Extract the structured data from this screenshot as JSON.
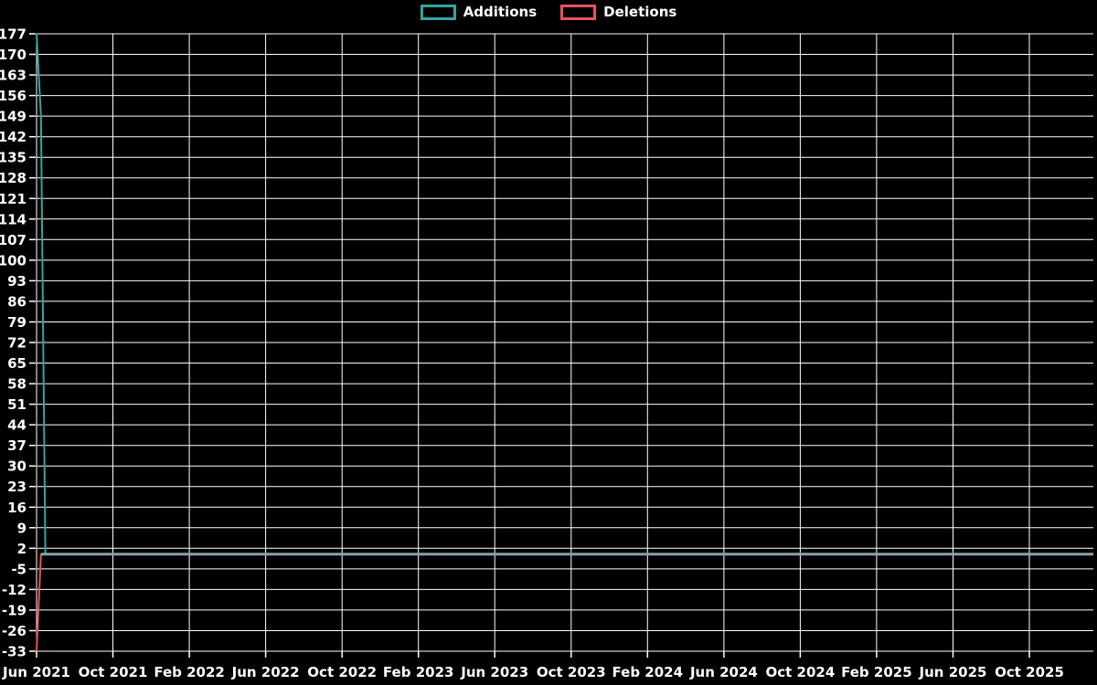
{
  "legend": {
    "items": [
      {
        "label": "Additions",
        "color": "#33a5a1"
      },
      {
        "label": "Deletions",
        "color": "#ec5063"
      }
    ]
  },
  "chart_data": {
    "type": "line",
    "title": "",
    "legend_position": "top-center",
    "grid": true,
    "background_color": "#000000",
    "grid_color": "#ffffff",
    "text_color": "#ffffff",
    "zero_line_color": "#8aa0ad",
    "ylim": [
      -33,
      177
    ],
    "y_ticks": [
      177,
      170,
      163,
      156,
      149,
      142,
      135,
      128,
      121,
      114,
      107,
      100,
      93,
      86,
      79,
      72,
      65,
      58,
      51,
      44,
      37,
      30,
      23,
      16,
      9,
      2,
      -5,
      -12,
      -19,
      -26,
      -33
    ],
    "x_tick_labels": [
      "Jun 2021",
      "Oct 2021",
      "Feb 2022",
      "Jun 2022",
      "Oct 2022",
      "Feb 2023",
      "Jun 2023",
      "Oct 2023",
      "Feb 2024",
      "Jun 2024",
      "Oct 2024",
      "Feb 2025",
      "Jun 2025",
      "Oct 2025"
    ],
    "x_unit": "week",
    "weeks_total": 241,
    "series": [
      {
        "name": "Additions",
        "color": "#33a5a1",
        "values_start": [
          177,
          149
        ],
        "values_rest": 0
      },
      {
        "name": "Deletions",
        "color": "#ec5063",
        "values_start": [
          -33
        ],
        "values_rest": 0
      }
    ]
  }
}
